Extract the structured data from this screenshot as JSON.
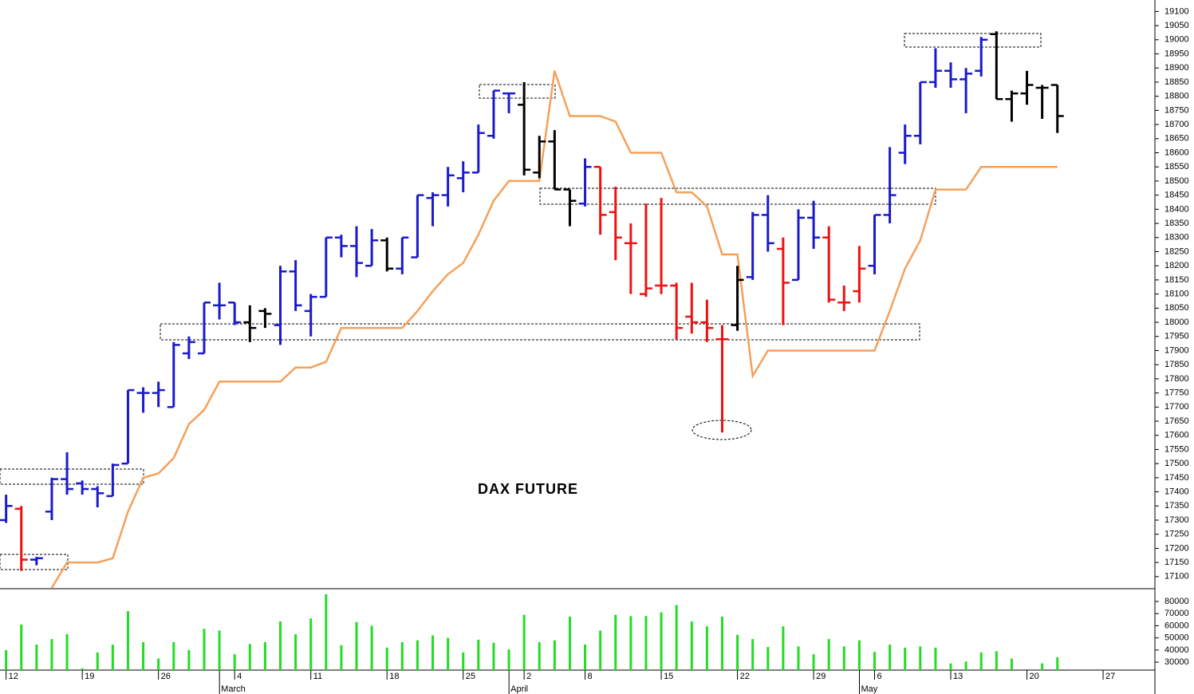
{
  "chart_data": {
    "type": "ohlc",
    "title": "DAX FUTURE",
    "xlim": [
      -0.4,
      75.4
    ],
    "xticks": [
      {
        "value": 0,
        "label": "12"
      },
      {
        "value": 5,
        "label": "19"
      },
      {
        "value": 10,
        "label": "26"
      },
      {
        "value": 15,
        "label": "4"
      },
      {
        "value": 20,
        "label": "11"
      },
      {
        "value": 25,
        "label": "18"
      },
      {
        "value": 30,
        "label": "25"
      },
      {
        "value": 34,
        "label": "2"
      },
      {
        "value": 38,
        "label": "8"
      },
      {
        "value": 43,
        "label": "15"
      },
      {
        "value": 48,
        "label": "22"
      },
      {
        "value": 53,
        "label": "29"
      },
      {
        "value": 57,
        "label": "6"
      },
      {
        "value": 62,
        "label": "13"
      },
      {
        "value": 67,
        "label": "20"
      },
      {
        "value": 72,
        "label": "27"
      }
    ],
    "month_labels": [
      {
        "value": 15,
        "label": "March"
      },
      {
        "value": 34,
        "label": "April"
      },
      {
        "value": 57,
        "label": "May"
      }
    ],
    "ylim": [
      17060,
      19135
    ],
    "yticks": [
      17100,
      17150,
      17200,
      17250,
      17300,
      17350,
      17400,
      17450,
      17500,
      17550,
      17600,
      17650,
      17700,
      17750,
      17800,
      17850,
      17900,
      17950,
      18000,
      18050,
      18100,
      18150,
      18200,
      18250,
      18300,
      18350,
      18400,
      18450,
      18500,
      18550,
      18600,
      18650,
      18700,
      18750,
      18800,
      18850,
      18900,
      18950,
      19000,
      19050,
      19100
    ],
    "ohlc": {
      "open": [
        17300,
        17340,
        17160,
        17330,
        17445,
        17430,
        17410,
        17385,
        17500,
        17750,
        17750,
        17700,
        17890,
        17890,
        18060,
        18070,
        18000,
        18040,
        17990,
        18180,
        18040,
        18090,
        18300,
        18270,
        18200,
        18290,
        18190,
        18230,
        18440,
        18450,
        18510,
        18530,
        18660,
        18810,
        18770,
        18530,
        18640,
        18470,
        18420,
        18550,
        18390,
        18280,
        18100,
        18130,
        18130,
        18020,
        18000,
        17940,
        17990,
        18160,
        18380,
        18260,
        18150,
        18370,
        18300,
        18070,
        18110,
        18200,
        18380,
        18600,
        18660,
        18850,
        18890,
        18860,
        18890,
        19020,
        18790,
        18810,
        18830,
        18840
      ],
      "high": [
        17390,
        17350,
        17170,
        17450,
        17540,
        17440,
        17420,
        17500,
        17760,
        17770,
        17790,
        17930,
        17950,
        18070,
        18140,
        18070,
        18060,
        18050,
        18200,
        18220,
        18100,
        18300,
        18310,
        18340,
        18330,
        18300,
        18300,
        18450,
        18460,
        18550,
        18570,
        18700,
        18820,
        18810,
        18850,
        18660,
        18680,
        18470,
        18580,
        18550,
        18480,
        18350,
        18420,
        18440,
        18140,
        18140,
        18080,
        17990,
        18200,
        18390,
        18450,
        18300,
        18400,
        18430,
        18340,
        18130,
        18270,
        18380,
        18620,
        18700,
        18850,
        18970,
        18920,
        18900,
        19010,
        19030,
        18820,
        18890,
        18840,
        18840
      ],
      "low": [
        17290,
        17120,
        17140,
        17300,
        17390,
        17390,
        17345,
        17385,
        17500,
        17680,
        17700,
        17700,
        17870,
        17890,
        18010,
        17990,
        17930,
        17980,
        17920,
        18040,
        17950,
        18090,
        18230,
        18160,
        18200,
        18180,
        18170,
        18230,
        18340,
        18410,
        18460,
        18530,
        18650,
        18740,
        18520,
        18510,
        18470,
        18340,
        18410,
        18310,
        18220,
        18100,
        18090,
        18100,
        17940,
        17960,
        17930,
        17610,
        17970,
        18150,
        18250,
        17990,
        18150,
        18260,
        18070,
        18040,
        18070,
        18170,
        18350,
        18560,
        18630,
        18830,
        18830,
        18740,
        18870,
        18790,
        18710,
        18770,
        18720,
        18670
      ],
      "close": [
        17350,
        17160,
        17165,
        17445,
        17410,
        17410,
        17395,
        17495,
        17760,
        17750,
        17760,
        17920,
        17930,
        18070,
        18060,
        18000,
        17980,
        18030,
        18180,
        18060,
        18090,
        18300,
        18270,
        18210,
        18290,
        18190,
        18300,
        18450,
        18450,
        18520,
        18530,
        18670,
        18820,
        18810,
        18540,
        18640,
        18470,
        18430,
        18550,
        18380,
        18300,
        18280,
        18120,
        18130,
        17980,
        18000,
        17980,
        17940,
        18150,
        18380,
        18280,
        18140,
        18370,
        18300,
        18080,
        18070,
        18190,
        18380,
        18450,
        18660,
        18850,
        18890,
        18860,
        18880,
        19000,
        18790,
        18810,
        18840,
        18830,
        18730
      ],
      "colors": [
        "#1a1acc",
        "#ee1111",
        "#1a1acc",
        "#1a1acc",
        "#1a1acc",
        "#1a1acc",
        "#1a1acc",
        "#1a1acc",
        "#1a1acc",
        "#1a1acc",
        "#1a1acc",
        "#1a1acc",
        "#1a1acc",
        "#1a1acc",
        "#1a1acc",
        "#1a1acc",
        "#000000",
        "#000000",
        "#1a1acc",
        "#1a1acc",
        "#1a1acc",
        "#1a1acc",
        "#1a1acc",
        "#1a1acc",
        "#1a1acc",
        "#000000",
        "#1a1acc",
        "#1a1acc",
        "#1a1acc",
        "#1a1acc",
        "#1a1acc",
        "#1a1acc",
        "#1a1acc",
        "#1a1acc",
        "#000000",
        "#000000",
        "#000000",
        "#000000",
        "#1a1acc",
        "#ee1111",
        "#ee1111",
        "#ee1111",
        "#ee1111",
        "#ee1111",
        "#ee1111",
        "#ee1111",
        "#ee1111",
        "#ee1111",
        "#000000",
        "#1a1acc",
        "#1a1acc",
        "#ee1111",
        "#1a1acc",
        "#1a1acc",
        "#ee1111",
        "#ee1111",
        "#ee1111",
        "#1a1acc",
        "#1a1acc",
        "#1a1acc",
        "#1a1acc",
        "#1a1acc",
        "#1a1acc",
        "#1a1acc",
        "#1a1acc",
        "#000000",
        "#000000",
        "#000000",
        "#000000",
        "#000000"
      ]
    },
    "line": {
      "color": "#f5a05a",
      "values": [
        null,
        null,
        null,
        17060,
        17150,
        17150,
        17150,
        17165,
        17330,
        17450,
        17465,
        17520,
        17640,
        17690,
        17790,
        17790,
        17790,
        17790,
        17790,
        17840,
        17840,
        17860,
        17980,
        17980,
        17980,
        17980,
        17980,
        18040,
        18110,
        18170,
        18210,
        18310,
        18430,
        18500,
        18500,
        18500,
        18890,
        18730,
        18730,
        18730,
        18710,
        18600,
        18600,
        18600,
        18460,
        18460,
        18410,
        18240,
        18240,
        17810,
        17900,
        17900,
        17900,
        17900,
        17900,
        17900,
        17900,
        17900,
        18040,
        18190,
        18290,
        18470,
        18470,
        18470,
        18550,
        18550,
        18550,
        18550,
        18550,
        18550
      ]
    },
    "volume": {
      "color": "#22dd22",
      "ylim": [
        23500,
        90500
      ],
      "yticks": [
        30000,
        40000,
        50000,
        60000,
        70000,
        80000
      ],
      "values": [
        40000,
        61000,
        44500,
        49000,
        53000,
        25000,
        38000,
        44500,
        72000,
        46500,
        33000,
        46500,
        40000,
        57500,
        56000,
        36500,
        45000,
        46500,
        63500,
        53000,
        66000,
        86000,
        44000,
        63000,
        60000,
        42000,
        46500,
        48000,
        52000,
        50000,
        38000,
        48500,
        46000,
        40500,
        69000,
        46500,
        48000,
        67500,
        44500,
        56000,
        69000,
        68000,
        68000,
        71000,
        77000,
        63500,
        59500,
        67500,
        52500,
        49000,
        42500,
        59500,
        43000,
        36500,
        49000,
        43000,
        48000,
        38500,
        44500,
        42000,
        43000,
        42000,
        29000,
        30500,
        38000,
        39000,
        33000,
        null,
        29000,
        34000
      ]
    }
  }
}
